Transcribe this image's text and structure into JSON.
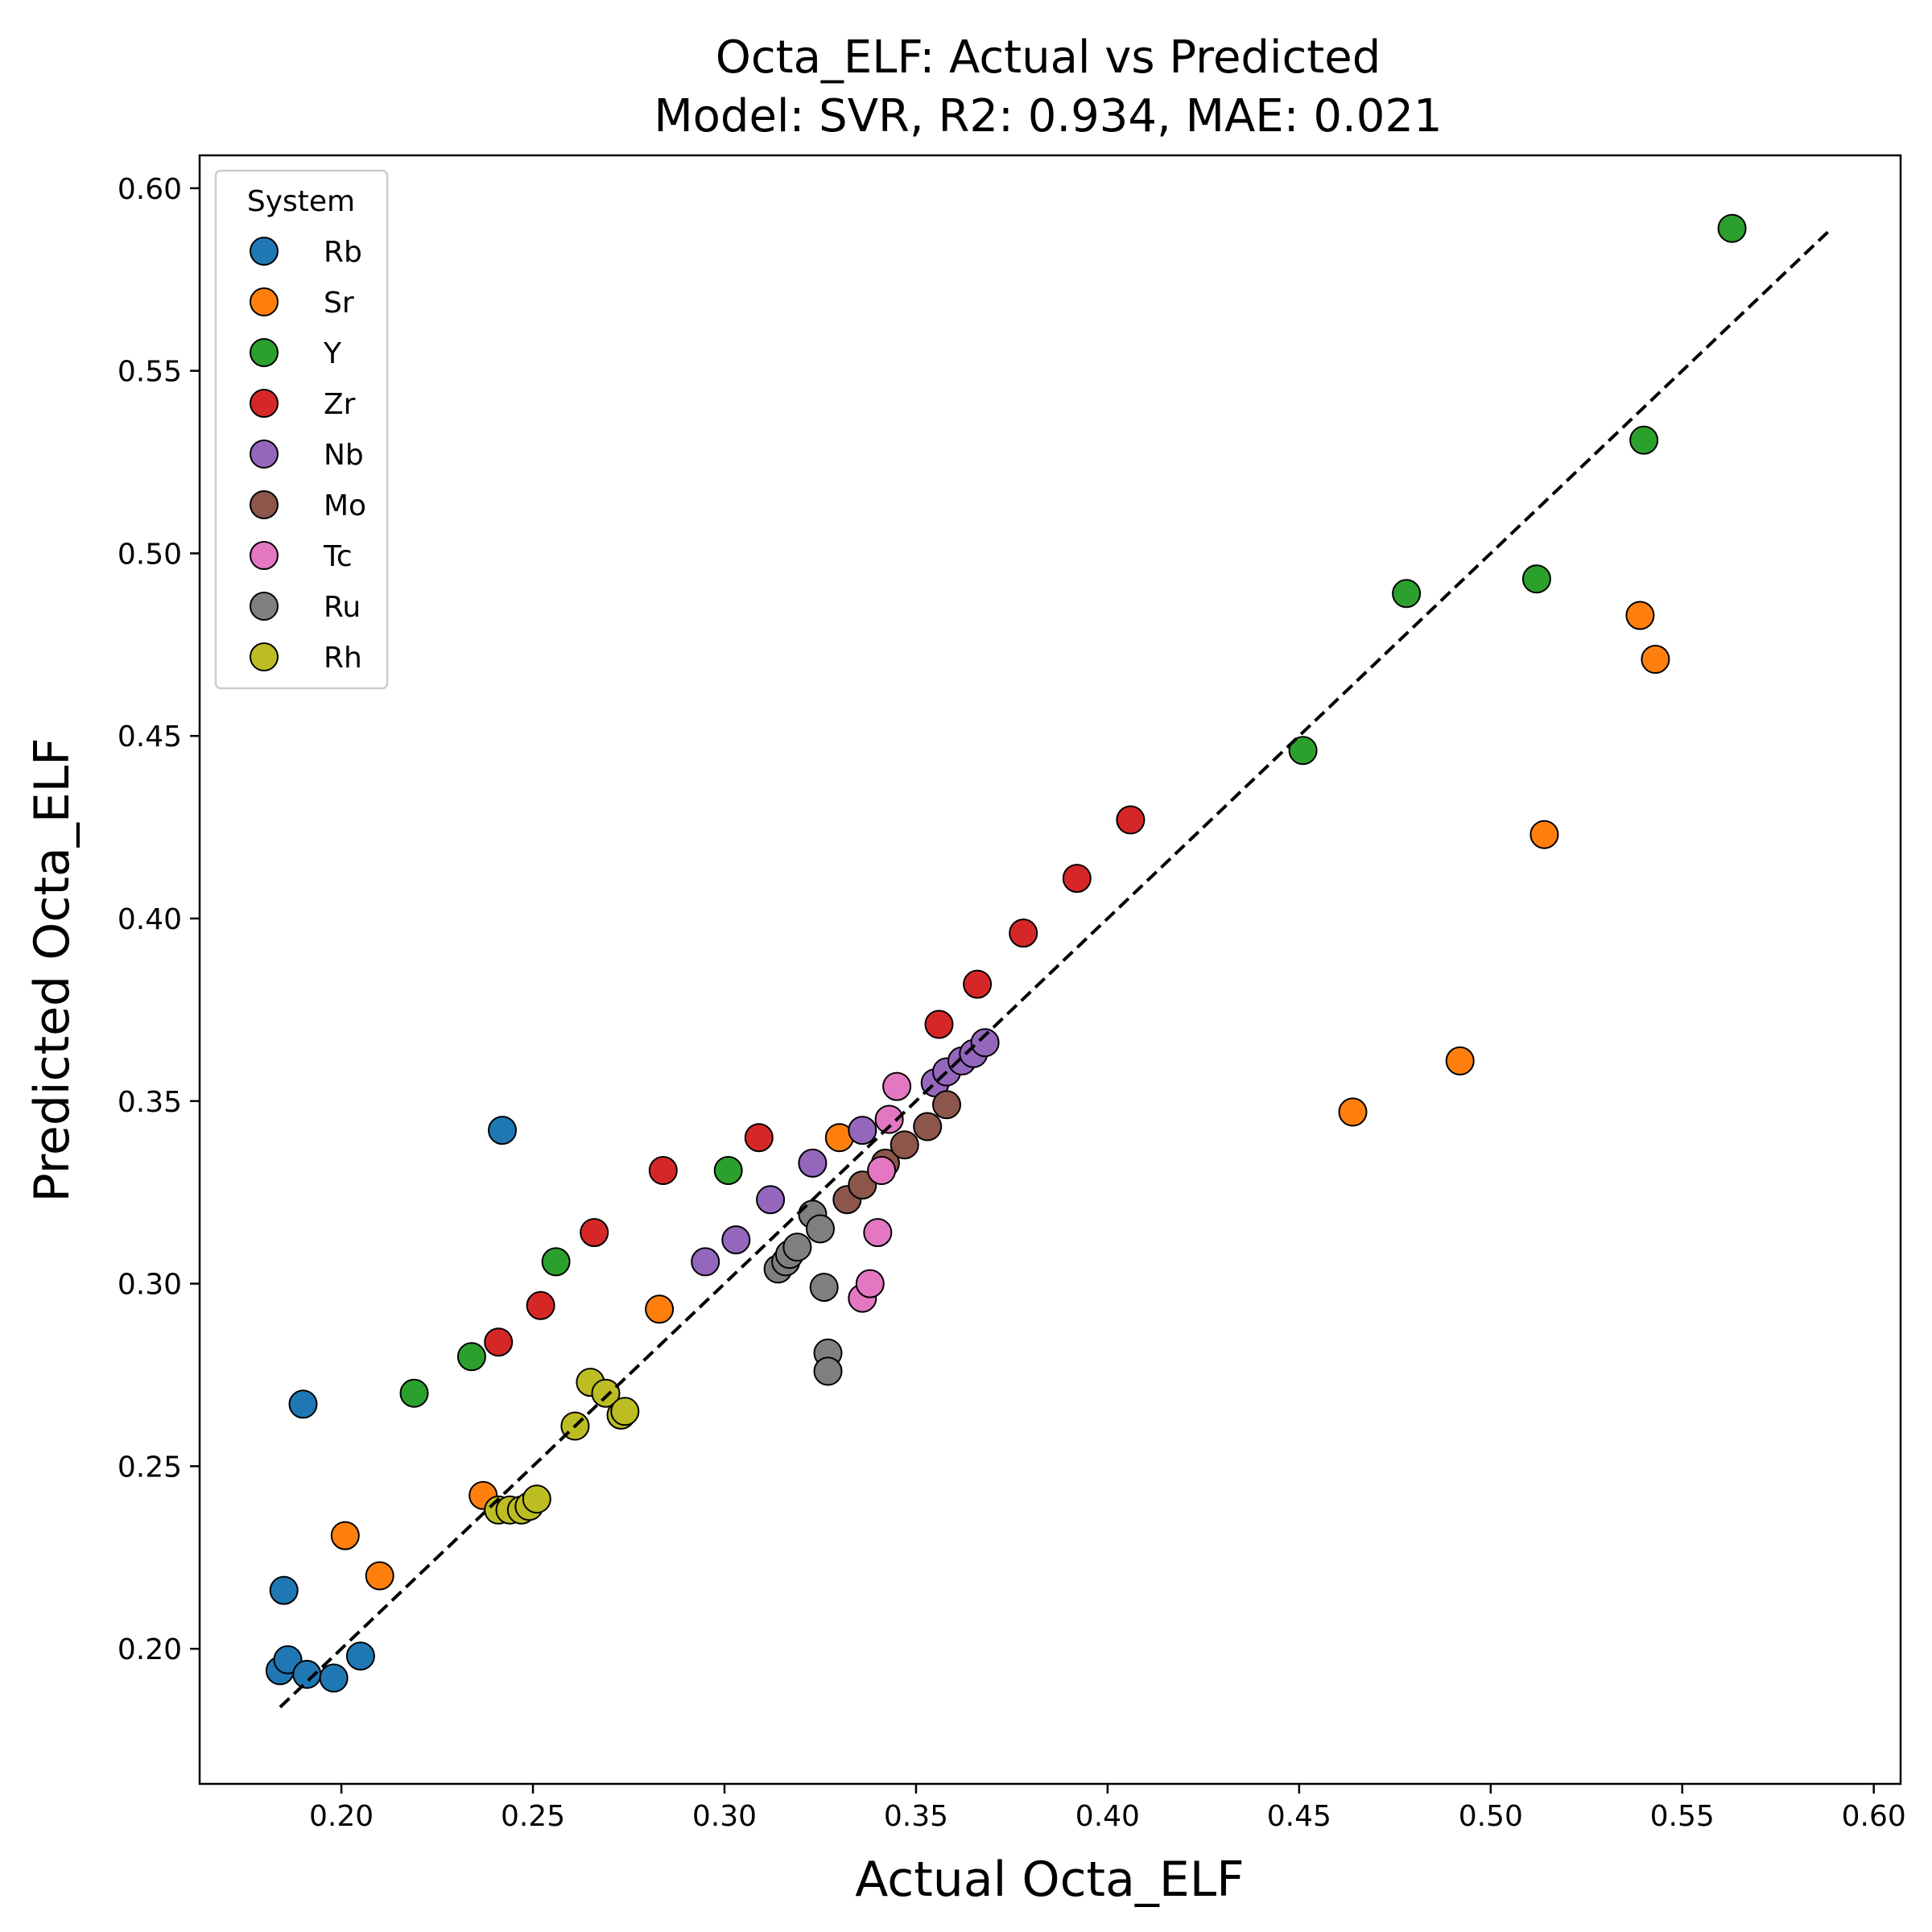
{
  "chart_data": {
    "type": "scatter",
    "title_line1": "Octa_ELF: Actual vs Predicted",
    "title_line2": "Model: SVR, R2: 0.934, MAE: 0.021",
    "xlabel": "Actual Octa_ELF",
    "ylabel": "Predicted Octa_ELF",
    "xlim": [
      0.163,
      0.607
    ],
    "ylim": [
      0.163,
      0.609
    ],
    "xticks": [
      "0.20",
      "0.25",
      "0.30",
      "0.35",
      "0.40",
      "0.45",
      "0.50",
      "0.55",
      "0.60"
    ],
    "yticks": [
      "0.20",
      "0.25",
      "0.30",
      "0.35",
      "0.40",
      "0.45",
      "0.50",
      "0.55",
      "0.60"
    ],
    "reference_line": {
      "style": "dashed",
      "color": "#000000",
      "x": [
        0.184,
        0.588
      ],
      "y": [
        0.184,
        0.588
      ]
    },
    "grid": false,
    "legend": {
      "title": "System",
      "placement": "top-left"
    },
    "series": [
      {
        "name": "Rb",
        "color": "#1f77b4",
        "points": [
          [
            0.184,
            0.194
          ],
          [
            0.186,
            0.197
          ],
          [
            0.185,
            0.216
          ],
          [
            0.191,
            0.193
          ],
          [
            0.198,
            0.192
          ],
          [
            0.205,
            0.198
          ],
          [
            0.19,
            0.267
          ],
          [
            0.242,
            0.342
          ]
        ]
      },
      {
        "name": "Sr",
        "color": "#ff7f0e",
        "points": [
          [
            0.201,
            0.231
          ],
          [
            0.21,
            0.22
          ],
          [
            0.237,
            0.242
          ],
          [
            0.283,
            0.293
          ],
          [
            0.33,
            0.34
          ],
          [
            0.464,
            0.347
          ],
          [
            0.492,
            0.361
          ],
          [
            0.514,
            0.423
          ],
          [
            0.539,
            0.483
          ],
          [
            0.543,
            0.471
          ]
        ]
      },
      {
        "name": "Y",
        "color": "#2ca02c",
        "points": [
          [
            0.219,
            0.27
          ],
          [
            0.234,
            0.28
          ],
          [
            0.256,
            0.306
          ],
          [
            0.301,
            0.331
          ],
          [
            0.451,
            0.446
          ],
          [
            0.478,
            0.489
          ],
          [
            0.512,
            0.493
          ],
          [
            0.54,
            0.531
          ],
          [
            0.563,
            0.589
          ]
        ]
      },
      {
        "name": "Zr",
        "color": "#d62728",
        "points": [
          [
            0.241,
            0.284
          ],
          [
            0.252,
            0.294
          ],
          [
            0.266,
            0.314
          ],
          [
            0.284,
            0.331
          ],
          [
            0.309,
            0.34
          ],
          [
            0.356,
            0.371
          ],
          [
            0.366,
            0.382
          ],
          [
            0.378,
            0.396
          ],
          [
            0.392,
            0.411
          ],
          [
            0.406,
            0.427
          ]
        ]
      },
      {
        "name": "Nb",
        "color": "#9467bd",
        "points": [
          [
            0.295,
            0.306
          ],
          [
            0.303,
            0.312
          ],
          [
            0.312,
            0.323
          ],
          [
            0.323,
            0.333
          ],
          [
            0.336,
            0.342
          ],
          [
            0.355,
            0.355
          ],
          [
            0.358,
            0.358
          ],
          [
            0.362,
            0.361
          ],
          [
            0.365,
            0.363
          ],
          [
            0.368,
            0.366
          ]
        ]
      },
      {
        "name": "Mo",
        "color": "#8c564b",
        "points": [
          [
            0.332,
            0.323
          ],
          [
            0.336,
            0.327
          ],
          [
            0.342,
            0.333
          ],
          [
            0.347,
            0.338
          ],
          [
            0.353,
            0.343
          ],
          [
            0.358,
            0.349
          ]
        ]
      },
      {
        "name": "Tc",
        "color": "#e377c2",
        "points": [
          [
            0.336,
            0.296
          ],
          [
            0.338,
            0.3
          ],
          [
            0.34,
            0.314
          ],
          [
            0.341,
            0.331
          ],
          [
            0.343,
            0.345
          ],
          [
            0.345,
            0.354
          ]
        ]
      },
      {
        "name": "Ru",
        "color": "#7f7f7f",
        "points": [
          [
            0.314,
            0.304
          ],
          [
            0.316,
            0.306
          ],
          [
            0.317,
            0.308
          ],
          [
            0.319,
            0.31
          ],
          [
            0.323,
            0.319
          ],
          [
            0.325,
            0.315
          ],
          [
            0.326,
            0.299
          ],
          [
            0.327,
            0.281
          ],
          [
            0.327,
            0.276
          ]
        ]
      },
      {
        "name": "Rh",
        "color": "#bcbd22",
        "points": [
          [
            0.241,
            0.238
          ],
          [
            0.244,
            0.238
          ],
          [
            0.247,
            0.238
          ],
          [
            0.249,
            0.239
          ],
          [
            0.251,
            0.241
          ],
          [
            0.261,
            0.261
          ],
          [
            0.265,
            0.273
          ],
          [
            0.269,
            0.27
          ],
          [
            0.273,
            0.264
          ],
          [
            0.274,
            0.265
          ]
        ]
      }
    ]
  }
}
